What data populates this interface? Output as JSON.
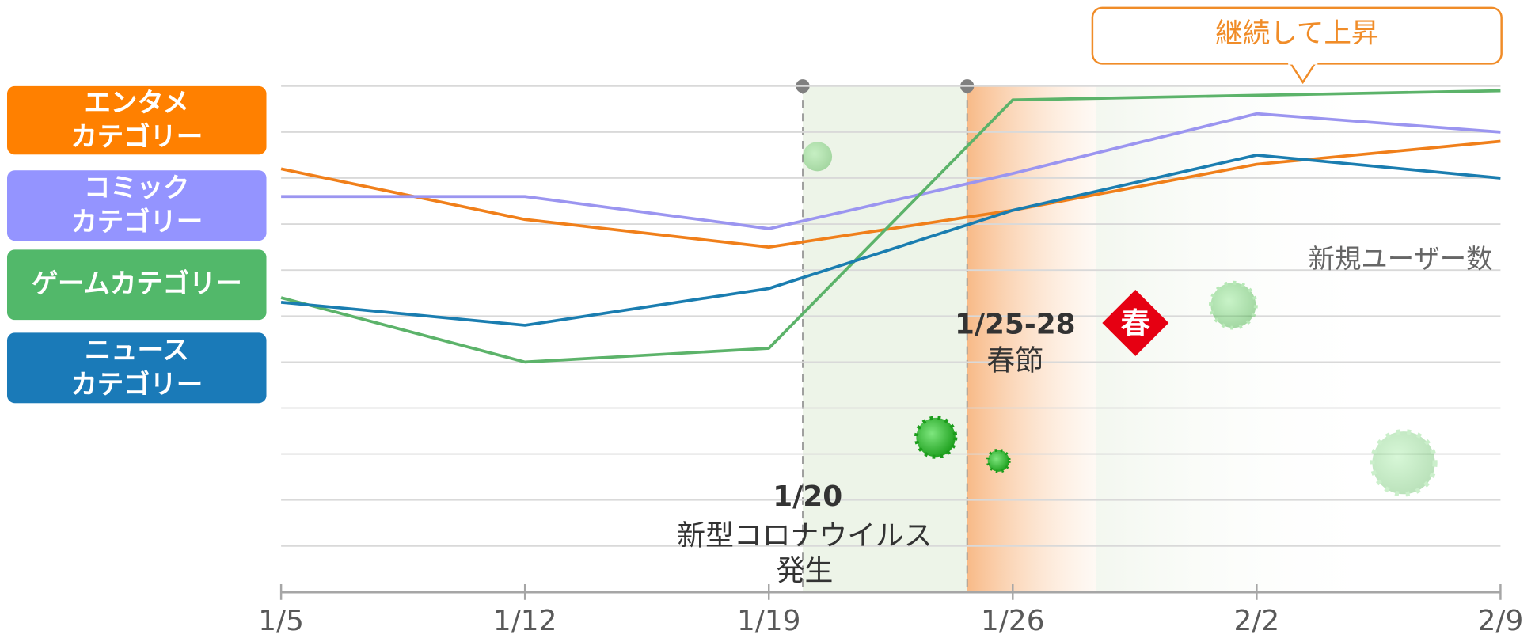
{
  "chart_data": {
    "type": "line",
    "categories": [
      "1/5",
      "1/12",
      "1/19",
      "1/26",
      "2/2",
      "2/9"
    ],
    "series": [
      {
        "name": "エンタメ\nカテゴリー",
        "color": "#f07f1a",
        "legend_color": "#ff8000",
        "values": [
          9.2,
          8.1,
          7.5,
          8.3,
          9.3,
          9.8
        ]
      },
      {
        "name": "コミック\nカテゴリー",
        "color": "#9b95f0",
        "legend_color": "#9494ff",
        "values": [
          8.6,
          8.6,
          7.9,
          9.1,
          10.4,
          10.0
        ]
      },
      {
        "name": "ゲームカテゴリー",
        "color": "#5cb36a",
        "legend_color": "#52b86a",
        "values": [
          6.4,
          5.0,
          5.3,
          10.7,
          10.8,
          10.9
        ]
      },
      {
        "name": "ニュース\nカテゴリー",
        "color": "#1a7db0",
        "legend_color": "#1a7ab8",
        "values": [
          6.3,
          5.8,
          6.6,
          8.3,
          9.5,
          9.0
        ]
      }
    ],
    "ylim": [
      0,
      11
    ],
    "yticks": [
      0,
      1,
      2,
      3,
      4,
      5,
      6,
      7,
      8,
      9,
      10,
      11
    ],
    "grid": true,
    "y_label": "新規ユーザー数",
    "annotations": {
      "callout": "継続して上昇",
      "corona_date": "1/20",
      "corona_line1": "新型コロナウイルス",
      "corona_line2": "発生",
      "spring_date": "1/25-28",
      "spring_label": "春節",
      "spring_badge": "春"
    }
  }
}
